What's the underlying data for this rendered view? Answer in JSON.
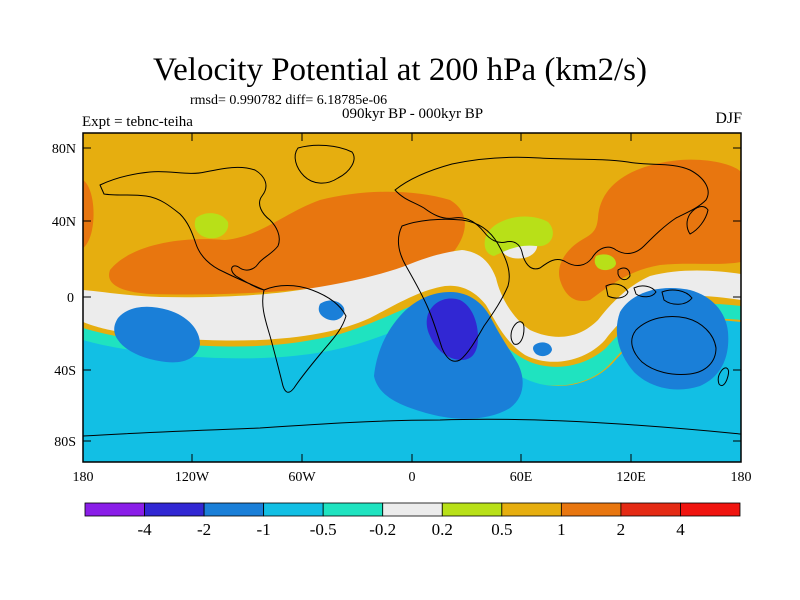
{
  "header": {
    "title": "Velocity Potential at 200 hPa (km2/s)",
    "stats": "rmsd= 0.990782 diff= 6.18785e-06",
    "subtitle": "090kyr BP - 000kyr BP",
    "experiment": "Expt = tebnc-teiha",
    "season": "DJF"
  },
  "map": {
    "lat_ticks": [
      "80N",
      "40N",
      "0",
      "40S",
      "80S"
    ],
    "lon_ticks": [
      "180",
      "120W",
      "60W",
      "0",
      "60E",
      "120E",
      "180"
    ],
    "lat_range": [
      -90,
      90
    ],
    "lon_range": [
      -180,
      180
    ]
  },
  "colorbar": {
    "labels": [
      "-4",
      "-2",
      "-1",
      "-0.5",
      "-0.2",
      "0.2",
      "0.5",
      "1",
      "2",
      "4"
    ],
    "levels": [
      -4,
      -2,
      -1,
      -0.5,
      -0.2,
      0.2,
      0.5,
      1,
      2,
      4
    ],
    "colors": [
      "#8a1ee8",
      "#3127d3",
      "#1a7fd8",
      "#12bfe4",
      "#1fe3c0",
      "#ececec",
      "#b8e018",
      "#e6ae0f",
      "#e8760f",
      "#e42a14",
      "#f0140f"
    ]
  }
}
